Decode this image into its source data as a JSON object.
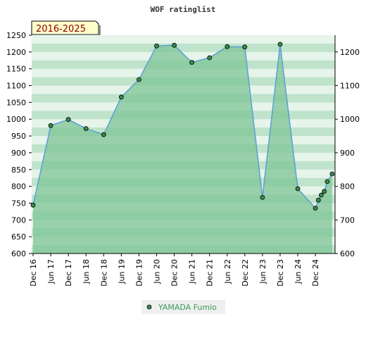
{
  "chart_data": {
    "type": "area",
    "title": "WOF ratinglist",
    "badge": "2016-2025",
    "ylim": [
      600,
      1250
    ],
    "left_ticks": [
      600,
      650,
      700,
      750,
      800,
      850,
      900,
      950,
      1000,
      1050,
      1100,
      1150,
      1200,
      1250
    ],
    "right_ticks": [
      600,
      700,
      800,
      900,
      1000,
      1100,
      1200
    ],
    "x_labels": [
      "Dec 16",
      "Jun 17",
      "Dec 17",
      "Jun 18",
      "Dec 18",
      "Jun 19",
      "Dec 19",
      "Jun 20",
      "Dec 20",
      "Jun 21",
      "Dec 21",
      "Jun 22",
      "Dec 22",
      "Jun 23",
      "Dec 23",
      "Jun 24",
      "Dec 24"
    ],
    "series": [
      {
        "name": "YAMADA Fumio",
        "x": [
          0,
          1,
          2,
          3,
          4,
          5,
          6,
          7,
          8,
          9,
          10,
          11,
          12,
          13,
          14,
          15,
          16,
          16.17,
          16.33,
          16.5,
          16.67,
          16.95
        ],
        "values": [
          744,
          981,
          999,
          972,
          954,
          1066,
          1118,
          1218,
          1220,
          1169,
          1183,
          1216,
          1215,
          767,
          1223,
          793,
          735,
          759,
          774,
          785,
          814,
          837
        ]
      }
    ],
    "legend_position": "bottom",
    "colors": {
      "line": "#5a9fd4",
      "marker": "#3a8a4a",
      "area": "#7ec495",
      "band_dark": "#bfe3cb",
      "band_light": "#e6f4ea",
      "badge_bg": "#ffffcc"
    }
  }
}
